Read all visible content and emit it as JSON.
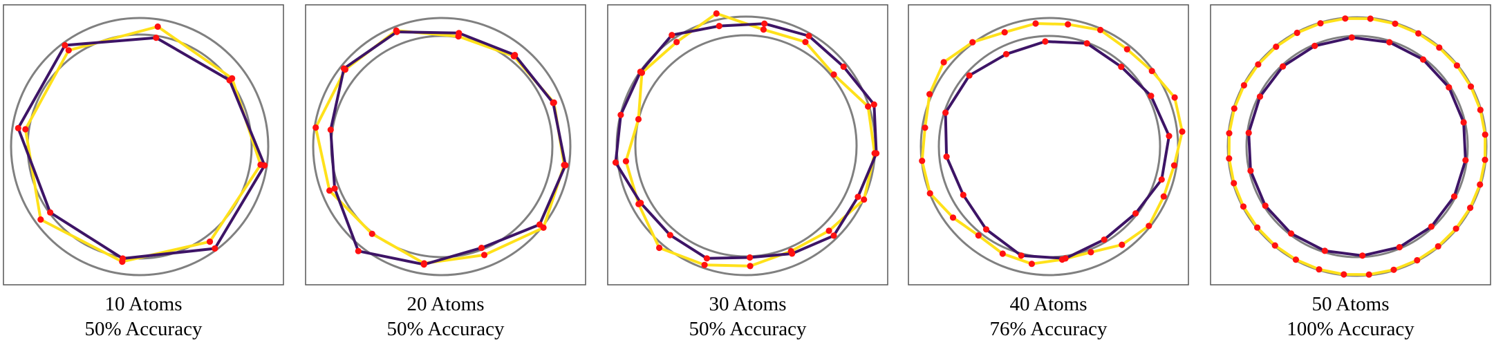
{
  "colors": {
    "frame": "#555555",
    "guide_ring": "#808080",
    "yellow_chain": "#ffe11a",
    "purple_chain": "#3d1466",
    "atom": "#ff1111"
  },
  "panels": [
    {
      "title": "10 Atoms",
      "accuracy": "50% Accuracy",
      "atoms": 10
    },
    {
      "title": "20 Atoms",
      "accuracy": "50% Accuracy",
      "atoms": 20
    },
    {
      "title": "30 Atoms",
      "accuracy": "50% Accuracy",
      "atoms": 30
    },
    {
      "title": "40 Atoms",
      "accuracy": "76% Accuracy",
      "atoms": 40
    },
    {
      "title": "50 Atoms",
      "accuracy": "100% Accuracy",
      "atoms": 50
    }
  ]
}
